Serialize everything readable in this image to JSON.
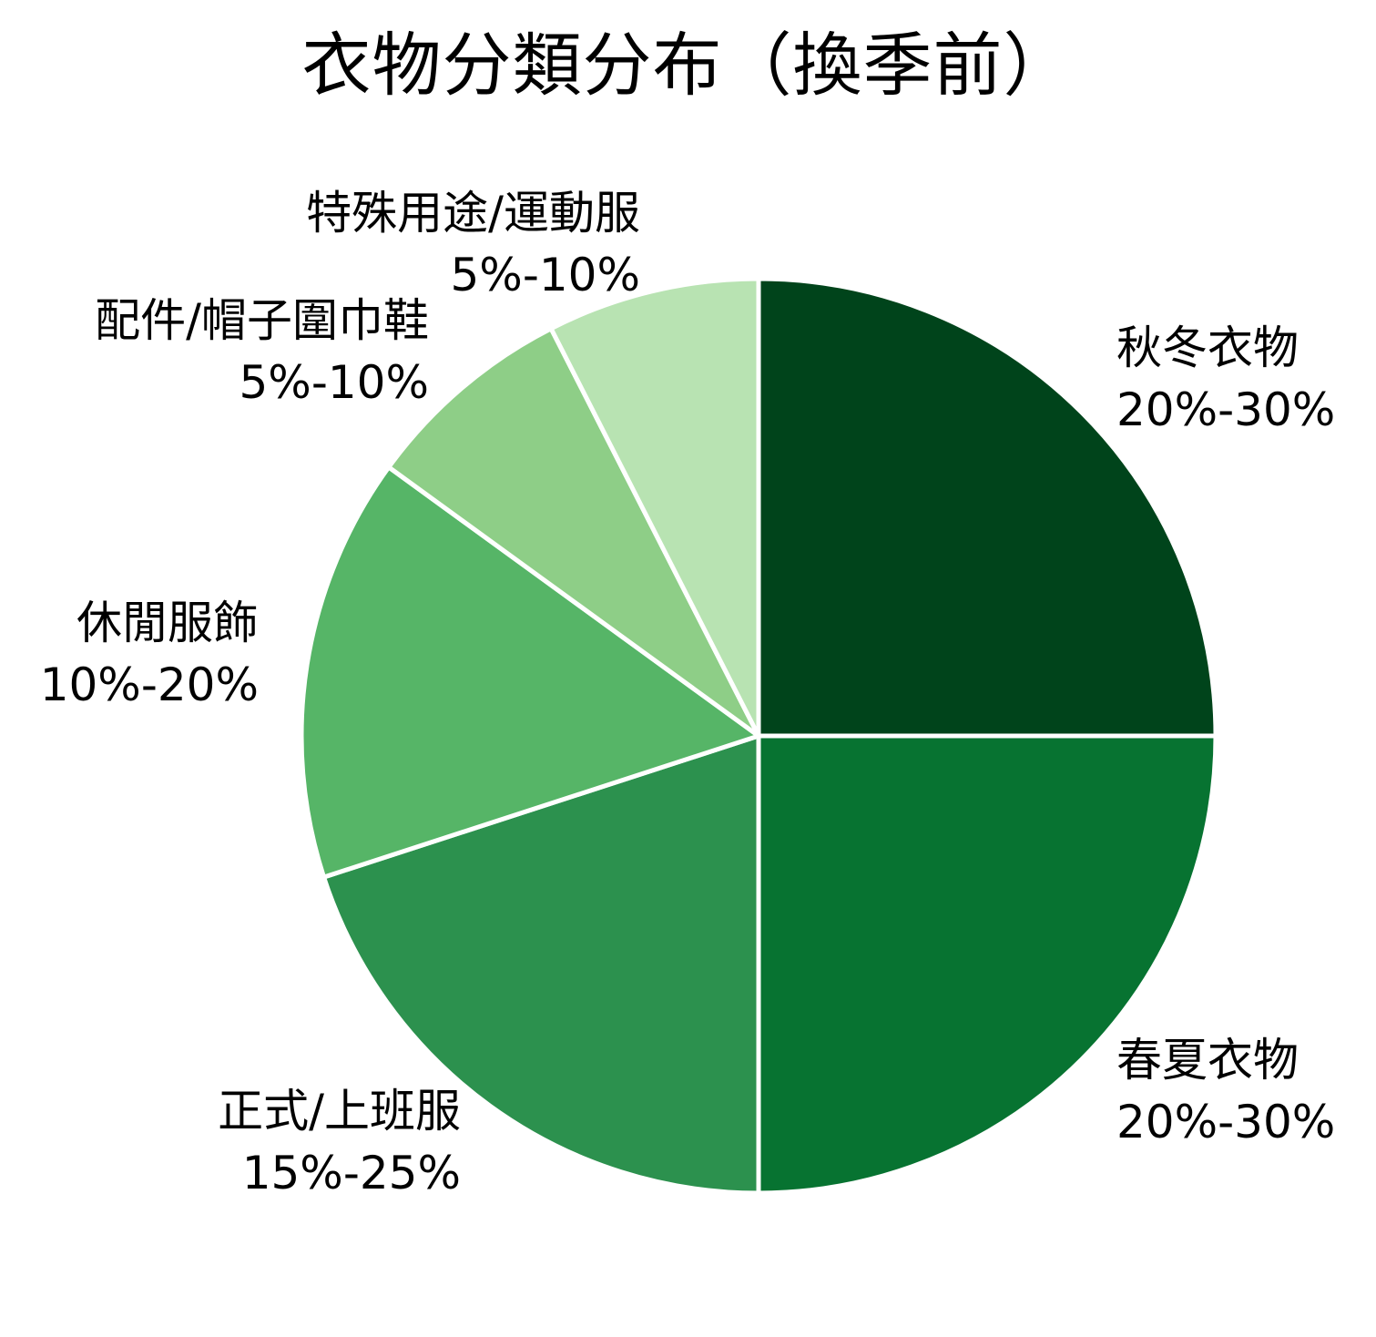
{
  "chart_data": {
    "type": "pie",
    "title": "衣物分類分布（換季前）",
    "start_angle": "90 (12 o'clock), clockwise",
    "wedge_edge_color": "#ffffff",
    "slices": [
      {
        "label": "秋冬衣物",
        "range": "20%-30%",
        "value": 25,
        "color": "#00441b"
      },
      {
        "label": "春夏衣物",
        "range": "20%-30%",
        "value": 25,
        "color": "#077331"
      },
      {
        "label": "正式/上班服",
        "range": "15%-25%",
        "value": 20,
        "color": "#2c914e"
      },
      {
        "label": "休閒服飾",
        "range": "10%-20%",
        "value": 15,
        "color": "#56b567"
      },
      {
        "label": "配件/帽子圍巾鞋",
        "range": "5%-10%",
        "value": 7.5,
        "color": "#8ece87"
      },
      {
        "label": "特殊用途/運動服",
        "range": "5%-10%",
        "value": 7.5,
        "color": "#b8e3b2"
      }
    ],
    "legend": "none (labels placed outside slices)"
  },
  "labels": [
    {
      "name": "秋冬衣物",
      "range": "20%-30%"
    },
    {
      "name": "春夏衣物",
      "range": "20%-30%"
    },
    {
      "name": "正式/上班服",
      "range": "15%-25%"
    },
    {
      "name": "休閒服飾",
      "range": "10%-20%"
    },
    {
      "name": "配件/帽子圍巾鞋",
      "range": "5%-10%"
    },
    {
      "name": "特殊用途/運動服",
      "range": "5%-10%"
    }
  ]
}
